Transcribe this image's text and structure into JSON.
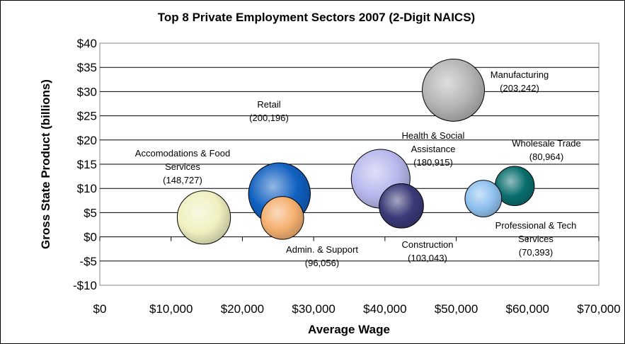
{
  "chart_data": {
    "type": "bubble",
    "title": "Top 8 Private Employment Sectors 2007 (2-Digit NAICS)",
    "xlabel": "Average Wage",
    "ylabel": "Gross State Product (billions)",
    "xlim": [
      0,
      70000
    ],
    "ylim": [
      -10,
      40
    ],
    "x_ticks": [
      0,
      10000,
      20000,
      30000,
      40000,
      50000,
      60000,
      70000
    ],
    "x_tick_labels": [
      "$0",
      "$10,000",
      "$20,000",
      "$30,000",
      "$40,000",
      "$50,000",
      "$60,000",
      "$70,000"
    ],
    "y_ticks": [
      40,
      35,
      30,
      25,
      20,
      15,
      10,
      5,
      0,
      -5,
      -10
    ],
    "y_tick_labels": [
      "$40",
      "$35",
      "$30",
      "$25",
      "$20",
      "$15",
      "$10",
      "$5",
      "$0",
      "-$5",
      "-$10"
    ],
    "grid": "horizontal",
    "legend": "none",
    "points": [
      {
        "name": "Manufacturing",
        "label_lines": [
          "Manufacturing",
          "(203,242)"
        ],
        "x": 49600,
        "y": 30.3,
        "employment": 203242,
        "color": "#b5b5b5"
      },
      {
        "name": "Retail",
        "label_lines": [
          "Retail",
          "(200,196)"
        ],
        "x": 25200,
        "y": 8.9,
        "employment": 200196,
        "color": "#1060c0"
      },
      {
        "name": "Health & Social Assistance",
        "label_lines": [
          "Health & Social",
          "Assistance",
          "(180,915)"
        ],
        "x": 39400,
        "y": 12.0,
        "employment": 180915,
        "color": "#b8b8ee"
      },
      {
        "name": "Accomodations & Food Services",
        "label_lines": [
          "Accomodations & Food",
          "Services",
          "(148,727)"
        ],
        "x": 14600,
        "y": 4.0,
        "employment": 148727,
        "color": "#f0f0c0"
      },
      {
        "name": "Construction",
        "label_lines": [
          "Construction",
          "(103,043)"
        ],
        "x": 42300,
        "y": 6.4,
        "employment": 103043,
        "color": "#3a3a78"
      },
      {
        "name": "Admin. & Support",
        "label_lines": [
          "Admin. & Support",
          "(96,056)"
        ],
        "x": 25600,
        "y": 3.9,
        "employment": 96056,
        "color": "#f5b070"
      },
      {
        "name": "Wholesale Trade",
        "label_lines": [
          "Wholesale Trade",
          "(80,964)"
        ],
        "x": 58200,
        "y": 10.5,
        "employment": 80964,
        "color": "#0a6e6e"
      },
      {
        "name": "Professional & Tech Services",
        "label_lines": [
          "Professional & Tech",
          "Services",
          "(70,393)"
        ],
        "x": 53800,
        "y": 7.9,
        "employment": 70393,
        "color": "#8ec0ee"
      }
    ]
  }
}
